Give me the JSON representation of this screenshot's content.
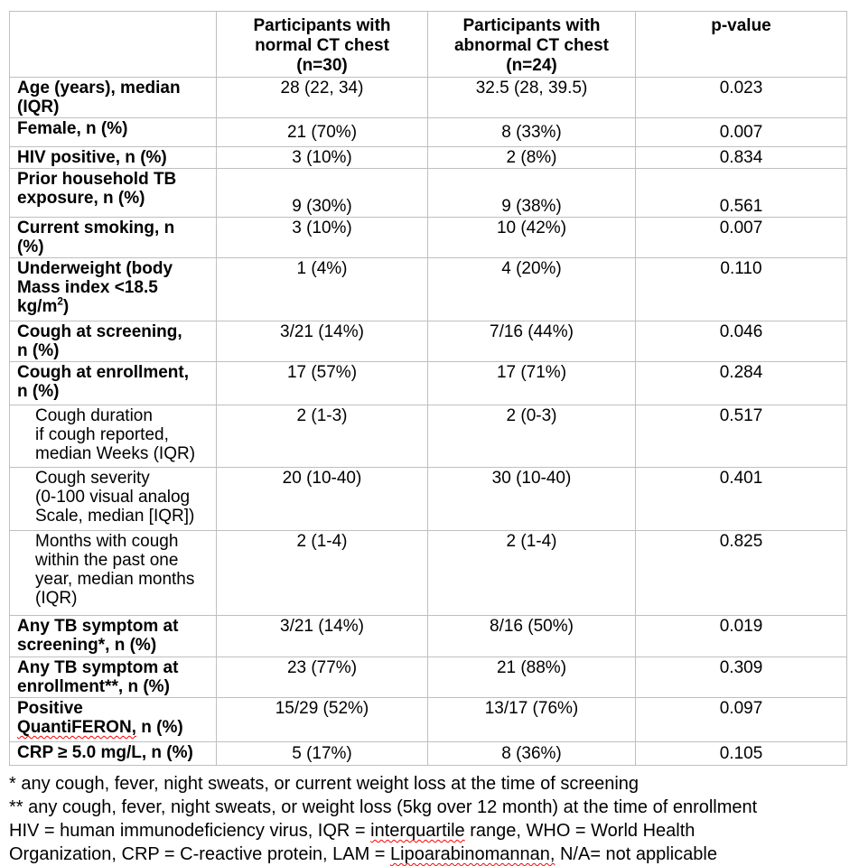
{
  "colors": {
    "border": "#bfbfbf",
    "text": "#000000",
    "misspelling_underline": "#ff0000"
  },
  "table": {
    "columns": [
      "",
      "Participants with\nnormal CT chest\n(n=30)",
      "Participants with\nabnormal CT chest\n(n=24)",
      "p-value"
    ],
    "rows": [
      {
        "label": "Age (years), median\n(IQR)",
        "normal": "28 (22, 34)",
        "abnormal": "32.5 (28, 39.5)",
        "p": "0.023"
      },
      {
        "label": "Female, n (%)",
        "normal": "21 (70%)",
        "abnormal": "8 (33%)",
        "p": "0.007"
      },
      {
        "label": "HIV positive, n (%)",
        "normal": "3 (10%)",
        "abnormal": "2 (8%)",
        "p": "0.834"
      },
      {
        "label": "Prior household TB\nexposure, n (%)",
        "normal": "9 (30%)",
        "abnormal": "9 (38%)",
        "p": "0.561"
      },
      {
        "label": "Current smoking, n\n(%)",
        "normal": "3 (10%)",
        "abnormal": "10 (42%)",
        "p": "0.007"
      },
      {
        "label": [
          {
            "t": "Underweight (body\nMass index <18.5\nkg/m"
          },
          {
            "t": "2",
            "sup": true
          },
          {
            "t": ")"
          }
        ],
        "normal": "1 (4%)",
        "abnormal": "4 (20%)",
        "p": "0.110"
      },
      {
        "label": "Cough at screening,\nn (%)",
        "normal": "3/21 (14%)",
        "abnormal": "7/16 (44%)",
        "p": "0.046"
      },
      {
        "label": "Cough at enrollment,\nn (%)",
        "normal": "17 (57%)",
        "abnormal": "17 (71%)",
        "p": "0.284"
      },
      {
        "label": "Cough duration\nif cough reported,\nmedian Weeks (IQR)",
        "sub": true,
        "normal": "2 (1-3)",
        "abnormal": "2 (0-3)",
        "p": "0.517"
      },
      {
        "label": "Cough severity\n(0-100 visual analog\nScale, median [IQR])",
        "sub": true,
        "normal": "20 (10-40)",
        "abnormal": "30 (10-40)",
        "p": "0.401"
      },
      {
        "label": "Months with cough\nwithin the past one\nyear, median months\n(IQR)",
        "sub": true,
        "normal": "2 (1-4)",
        "abnormal": "2 (1-4)",
        "p": "0.825"
      },
      {
        "label": "Any TB symptom at\nscreening*, n (%)",
        "normal": "3/21 (14%)",
        "abnormal": "8/16 (50%)",
        "p": "0.019"
      },
      {
        "label": "Any TB symptom at\nenrollment**, n (%)",
        "normal": "23 (77%)",
        "abnormal": "21 (88%)",
        "p": "0.309"
      },
      {
        "label": [
          {
            "t": "Positive\n"
          },
          {
            "t": "QuantiFERON,",
            "wavy": true
          },
          {
            "t": " n (%)"
          }
        ],
        "normal": "15/29 (52%)",
        "abnormal": "13/17 (76%)",
        "p": "0.097"
      },
      {
        "label": "CRP ≥ 5.0 mg/L, n (%)",
        "normal": "5 (17%)",
        "abnormal": "8 (36%)",
        "p": "0.105"
      }
    ]
  },
  "footnotes": [
    "* any cough, fever, night sweats, or current weight loss at the time of screening",
    "** any cough, fever, night sweats, or weight loss (5kg over 12 month) at the time of enrollment",
    [
      {
        "t": "HIV = human immunodeficiency virus, IQR = "
      },
      {
        "t": "interquartile",
        "wavy": true
      },
      {
        "t": " range, WHO = World Health\nOrganization, CRP = C-reactive protein, LAM = "
      },
      {
        "t": "Lipoarabinomannan,",
        "wavy": true
      },
      {
        "t": " N/A= not applicable"
      }
    ]
  ]
}
